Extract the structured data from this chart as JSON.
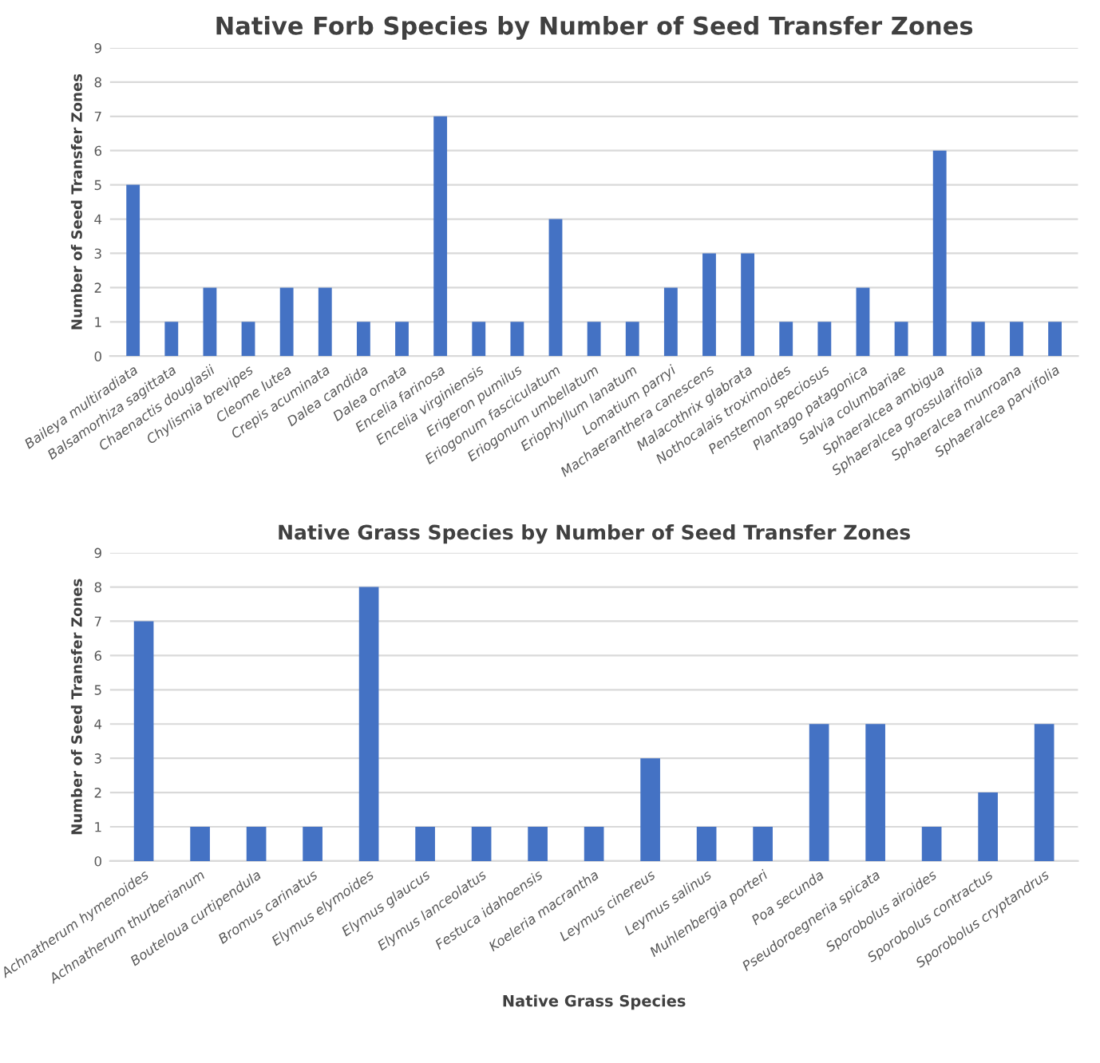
{
  "chart_data": [
    {
      "type": "bar",
      "title": "Native Forb Species by Number of Seed Transfer Zones",
      "ylabel": "Number of Seed Transfer Zones",
      "color": "#4472c4",
      "grid": "y",
      "ylim": [
        0,
        9
      ],
      "yticks": [
        0,
        1,
        2,
        3,
        4,
        5,
        6,
        7,
        8,
        9
      ],
      "categories": [
        "Baileya multiradiata",
        "Balsamorhiza sagittata",
        "Chaenactis douglasii",
        "Chylismia brevipes",
        "Cleome lutea",
        "Crepis acuminata",
        "Dalea candida",
        "Dalea ornata",
        "Encelia farinosa",
        "Encelia virginiensis",
        "Erigeron pumilus",
        "Eriogonum fasciculatum",
        "Eriogonum umbellatum",
        "Eriophyllum lanatum",
        "Lomatium parryi",
        "Machaeranthera canescens",
        "Malacothrix glabrata",
        "Nothocalais troximoides",
        "Penstemon speciosus",
        "Plantago patagonica",
        "Salvia columbariae",
        "Sphaeralcea ambigua",
        "Sphaeralcea grossularifolia",
        "Sphaeralcea munroana",
        "Sphaeralcea parvifolia"
      ],
      "values": [
        5,
        1,
        2,
        1,
        2,
        2,
        1,
        1,
        7,
        1,
        1,
        4,
        1,
        1,
        2,
        3,
        3,
        1,
        1,
        2,
        1,
        6,
        1,
        1,
        1
      ]
    },
    {
      "type": "bar",
      "title": "Native Grass Species by Number of Seed Transfer Zones",
      "ylabel": "Number of Seed Transfer Zones",
      "xlabel": "Native Grass Species",
      "color": "#4472c4",
      "grid": "y",
      "ylim": [
        0,
        9
      ],
      "yticks": [
        0,
        1,
        2,
        3,
        4,
        5,
        6,
        7,
        8,
        9
      ],
      "categories": [
        "Achnatherum hymenoides",
        "Achnatherum thurberianum",
        "Bouteloua curtipendula",
        "Bromus carinatus",
        "Elymus elymoides",
        "Elymus glaucus",
        "Elymus lanceolatus",
        "Festuca idahoensis",
        "Koeleria macrantha",
        "Leymus cinereus",
        "Leymus salinus",
        "Muhlenbergia porteri",
        "Poa secunda",
        "Pseudoroegneria spicata",
        "Sporobolus airoides",
        "Sporobolus contractus",
        "Sporobolus cryptandrus"
      ],
      "values": [
        7,
        1,
        1,
        1,
        8,
        1,
        1,
        1,
        1,
        3,
        1,
        1,
        4,
        4,
        1,
        2,
        4
      ]
    }
  ]
}
